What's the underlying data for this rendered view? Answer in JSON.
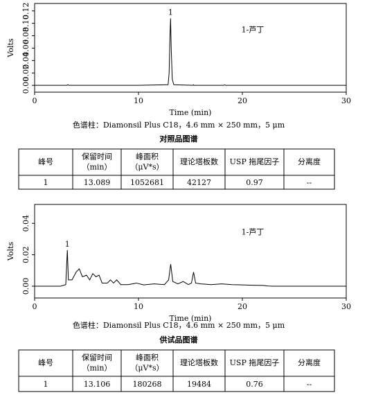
{
  "chart_data": [
    {
      "type": "line",
      "ylabel": "Volts",
      "xlabel": "Time (min)",
      "peak_label": "1",
      "annotation": "1-芦丁",
      "xlim": [
        0,
        30
      ],
      "xticks": [
        0,
        10,
        20,
        30
      ],
      "ylim": [
        -0.011,
        0.132
      ],
      "yticks": [
        {
          "value": 0,
          "label": "0.00"
        },
        {
          "value": 0.02,
          "label": "0.02"
        },
        {
          "value": 0.04,
          "label": "0.04"
        },
        {
          "value": 0.06,
          "label": "0.06"
        },
        {
          "value": 0.08,
          "label": "0.08"
        },
        {
          "value": 0.1,
          "label": "0.10"
        },
        {
          "value": 0.12,
          "label": "0.12"
        }
      ],
      "x": [
        0,
        3.1,
        3.2,
        3.3,
        10,
        12.85,
        12.95,
        13.03,
        13.09,
        13.15,
        13.25,
        13.4,
        15.25,
        15.3,
        15.35,
        18.2,
        18.3,
        18.4,
        30
      ],
      "series": [
        {
          "color": "#000000",
          "values": [
            0,
            0,
            0.001,
            0,
            0,
            0.001,
            0.02,
            0.08,
            0.108,
            0.06,
            0.01,
            0.001,
            0,
            0.001,
            0,
            0,
            0.0008,
            0,
            0
          ]
        }
      ]
    },
    {
      "type": "line",
      "ylabel": "Volts",
      "xlabel": "Time (min)",
      "peak_label": "1",
      "annotation": "1-芦丁",
      "xlim": [
        0,
        30
      ],
      "xticks": [
        0,
        10,
        20,
        30
      ],
      "ylim": [
        -0.0075,
        0.052
      ],
      "yticks": [
        {
          "value": 0,
          "label": "0.00"
        },
        {
          "value": 0.02,
          "label": "0.02"
        },
        {
          "value": 0.04,
          "label": "0.04"
        }
      ],
      "x": [
        0,
        2.5,
        3.0,
        3.15,
        3.25,
        3.6,
        4.0,
        4.3,
        4.6,
        5.0,
        5.3,
        5.6,
        5.9,
        6.2,
        6.5,
        7.0,
        7.3,
        7.6,
        7.9,
        8.3,
        9.0,
        9.8,
        10.5,
        11.5,
        12.5,
        12.9,
        13.1,
        13.3,
        13.8,
        14.3,
        14.8,
        15.1,
        15.3,
        15.5,
        16,
        17,
        18,
        19,
        20,
        21,
        22,
        22.5,
        23,
        30
      ],
      "series": [
        {
          "color": "#000000",
          "values": [
            0,
            0,
            0.001,
            0.023,
            0.004,
            0.004,
            0.009,
            0.011,
            0.006,
            0.007,
            0.004,
            0.008,
            0.006,
            0.007,
            0.002,
            0.002,
            0.004,
            0.002,
            0.004,
            0.001,
            0.001,
            0.002,
            0.0008,
            0.0015,
            0.001,
            0.004,
            0.014,
            0.003,
            0.0015,
            0.003,
            0.001,
            0.002,
            0.009,
            0.002,
            0.0015,
            0.001,
            0.0015,
            0.001,
            0.0008,
            0.0006,
            0.0005,
            0.0001,
            0,
            0
          ]
        }
      ]
    }
  ],
  "captions": [
    "色谱柱：Diamonsil Plus C18，4.6 mm × 250 mm，5 μm",
    "色谱柱：Diamonsil Plus C18，4.6 mm × 250 mm，5 μm"
  ],
  "tables": [
    {
      "title": "对照品图谱",
      "header": [
        [
          "峰号"
        ],
        [
          "保留时间",
          "（min）"
        ],
        [
          "峰面积",
          "（μV*s）"
        ],
        [
          "理论塔板数"
        ],
        [
          "USP 拖尾因子"
        ],
        [
          "分离度"
        ]
      ],
      "rows": [
        [
          "1",
          "13.089",
          "1052681",
          "42127",
          "0.97",
          "--"
        ]
      ]
    },
    {
      "title": "供试品图谱",
      "header": [
        [
          "峰号"
        ],
        [
          "保留时间",
          "（min）"
        ],
        [
          "峰面积",
          "（μV*s）"
        ],
        [
          "理论塔板数"
        ],
        [
          "USP 拖尾因子"
        ],
        [
          "分离度"
        ]
      ],
      "rows": [
        [
          "1",
          "13.106",
          "180268",
          "19484",
          "0.76",
          "--"
        ]
      ]
    }
  ]
}
